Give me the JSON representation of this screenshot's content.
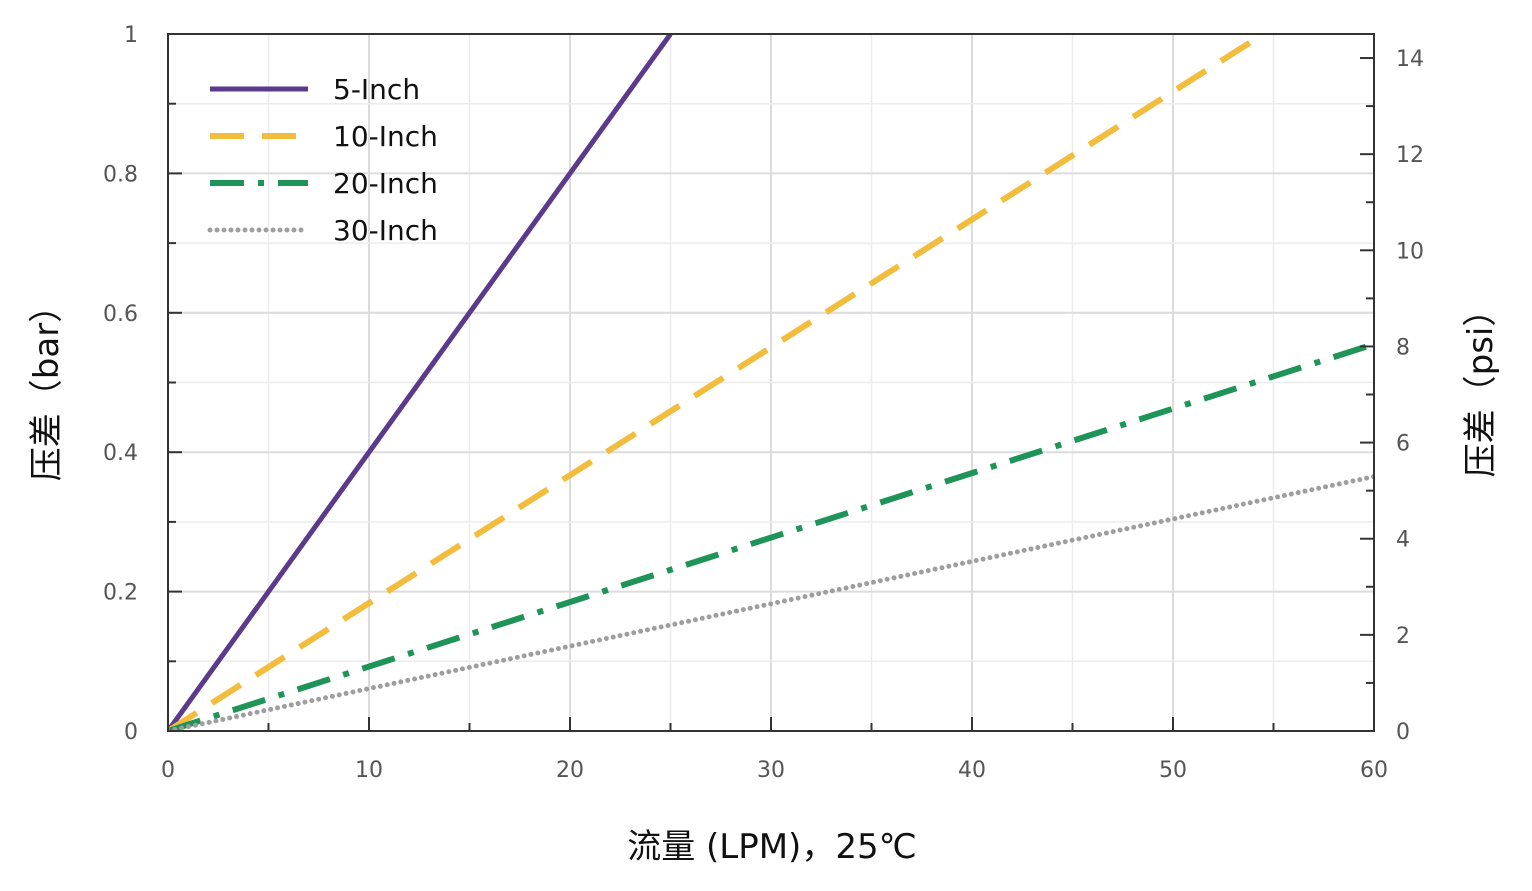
{
  "chart_data": {
    "type": "line",
    "xlabel": "流量 (LPM)，25℃",
    "ylabel_left": "压差（bar）",
    "ylabel_right": "压差（psi）",
    "xlim": [
      0,
      60
    ],
    "ylim_left": [
      0,
      1
    ],
    "ylim_right": [
      0,
      14.5
    ],
    "x_ticks": [
      0,
      10,
      20,
      30,
      40,
      50,
      60
    ],
    "x_tick_labels": [
      "0",
      "10",
      "20",
      "30",
      "40",
      "50",
      "60"
    ],
    "y_left_ticks": [
      0,
      0.2,
      0.4,
      0.6,
      0.8,
      1
    ],
    "y_left_tick_labels": [
      "0",
      "0.2",
      "0.4",
      "0.6",
      "0.8",
      "1"
    ],
    "y_right_ticks": [
      0,
      2,
      4,
      6,
      8,
      10,
      12,
      14
    ],
    "y_right_tick_labels": [
      "0",
      "2",
      "4",
      "6",
      "8",
      "10",
      "12",
      "14"
    ],
    "grid": true,
    "legend_position": "top-left",
    "series": [
      {
        "name": "5-Inch",
        "color": "#5b3a8c",
        "style": "solid",
        "x": [
          0,
          25
        ],
        "y": [
          0,
          1.0
        ]
      },
      {
        "name": "10-Inch",
        "color": "#f2bd3c",
        "style": "dashed",
        "x": [
          0,
          54.5
        ],
        "y": [
          0,
          1.0
        ]
      },
      {
        "name": "20-Inch",
        "color": "#1f9458",
        "style": "dash-dot",
        "x": [
          0,
          60
        ],
        "y": [
          0,
          0.555
        ]
      },
      {
        "name": "30-Inch",
        "color": "#9e9e9e",
        "style": "dotted",
        "x": [
          0,
          60
        ],
        "y": [
          0,
          0.365
        ]
      }
    ]
  }
}
